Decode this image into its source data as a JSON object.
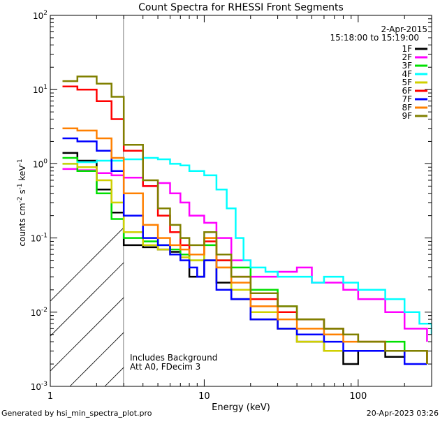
{
  "chart_data": {
    "type": "line",
    "title": "Count Spectra for RHESSI Front Segments",
    "xlabel": "Energy (keV)",
    "ylabel": "counts cm-2 s-1 keV-1",
    "xscale": "log",
    "yscale": "log",
    "xlim": [
      1,
      300
    ],
    "ylim": [
      0.001,
      100
    ],
    "x_ticks": [
      {
        "v": 1,
        "label": "1"
      },
      {
        "v": 10,
        "label": "10"
      },
      {
        "v": 100,
        "label": "100"
      }
    ],
    "y_ticks": [
      {
        "v": 0.001,
        "base": "10",
        "exp": "-3"
      },
      {
        "v": 0.01,
        "base": "10",
        "exp": "-2"
      },
      {
        "v": 0.1,
        "base": "10",
        "exp": "-1"
      },
      {
        "v": 1,
        "base": "10",
        "exp": "0"
      },
      {
        "v": 10,
        "base": "10",
        "exp": "1"
      },
      {
        "v": 100,
        "base": "10",
        "exp": "2"
      }
    ],
    "shaded_region_xmax": 3,
    "legend_date": "2-Apr-2015",
    "legend_time": "15:18:00 to 15:19:00",
    "legend_position": "top-right",
    "annotation_lines": [
      "Includes Background",
      "Att A0, FDecim 3"
    ],
    "footer_left": "Generated by hsi_min_spectra_plot.pro",
    "footer_right": "20-Apr-2023 03:26",
    "series": [
      {
        "name": "1F",
        "color": "#000000",
        "x": [
          1.2,
          1.5,
          2.0,
          2.5,
          3.0,
          4.0,
          5.0,
          6.0,
          7.0,
          8.0,
          10.0,
          12.0,
          15.0,
          20.0,
          30.0,
          40.0,
          60.0,
          80.0,
          100.0,
          150.0,
          200.0,
          280.0
        ],
        "y": [
          1.4,
          1.1,
          0.45,
          0.22,
          0.08,
          0.075,
          0.07,
          0.065,
          0.06,
          0.03,
          0.05,
          0.025,
          0.015,
          0.008,
          0.006,
          0.004,
          0.003,
          0.002,
          0.003,
          0.0025,
          0.003,
          0.002
        ]
      },
      {
        "name": "2F",
        "color": "#ff00ff",
        "x": [
          1.2,
          1.5,
          2.0,
          2.5,
          3.0,
          4.0,
          5.0,
          6.0,
          7.0,
          8.0,
          10.0,
          12.0,
          15.0,
          20.0,
          25.0,
          30.0,
          40.0,
          50.0,
          60.0,
          80.0,
          100.0,
          150.0,
          200.0,
          280.0
        ],
        "y": [
          0.85,
          0.82,
          0.75,
          0.7,
          0.65,
          0.5,
          0.55,
          0.4,
          0.3,
          0.2,
          0.16,
          0.1,
          0.05,
          0.03,
          0.03,
          0.035,
          0.04,
          0.025,
          0.025,
          0.02,
          0.015,
          0.01,
          0.006,
          0.004
        ]
      },
      {
        "name": "3F",
        "color": "#00e000",
        "x": [
          1.2,
          1.5,
          2.0,
          2.5,
          3.0,
          4.0,
          5.0,
          6.0,
          7.0,
          8.0,
          10.0,
          12.0,
          15.0,
          20.0,
          30.0,
          40.0,
          60.0,
          80.0,
          100.0,
          150.0,
          200.0,
          280.0
        ],
        "y": [
          1.2,
          0.8,
          0.4,
          0.18,
          0.1,
          0.09,
          0.08,
          0.07,
          0.06,
          0.05,
          0.08,
          0.05,
          0.04,
          0.02,
          0.012,
          0.008,
          0.006,
          0.005,
          0.004,
          0.004,
          0.003,
          0.003
        ]
      },
      {
        "name": "4F",
        "color": "#00ffff",
        "x": [
          1.2,
          1.5,
          2.0,
          2.5,
          3.0,
          4.0,
          5.0,
          6.0,
          7.0,
          8.0,
          10.0,
          12.0,
          14.0,
          16.0,
          18.0,
          20.0,
          25.0,
          30.0,
          40.0,
          50.0,
          60.0,
          80.0,
          100.0,
          150.0,
          200.0,
          250.0,
          300.0
        ],
        "y": [
          1.0,
          1.05,
          1.1,
          1.1,
          1.15,
          1.2,
          1.15,
          1.0,
          0.95,
          0.8,
          0.7,
          0.45,
          0.25,
          0.1,
          0.05,
          0.04,
          0.035,
          0.03,
          0.03,
          0.025,
          0.03,
          0.025,
          0.02,
          0.015,
          0.01,
          0.007,
          0.005
        ]
      },
      {
        "name": "5F",
        "color": "#d0d000",
        "x": [
          1.2,
          1.5,
          2.0,
          2.5,
          3.0,
          4.0,
          5.0,
          6.0,
          7.0,
          8.0,
          10.0,
          12.0,
          15.0,
          20.0,
          30.0,
          40.0,
          60.0,
          80.0,
          100.0,
          150.0,
          200.0,
          280.0
        ],
        "y": [
          1.0,
          0.9,
          0.6,
          0.3,
          0.12,
          0.08,
          0.07,
          0.06,
          0.055,
          0.05,
          0.1,
          0.04,
          0.02,
          0.01,
          0.006,
          0.004,
          0.003,
          0.003,
          0.003,
          0.003,
          0.003,
          0.002
        ]
      },
      {
        "name": "6F",
        "color": "#ff0000",
        "x": [
          1.2,
          1.5,
          2.0,
          2.5,
          3.0,
          4.0,
          5.0,
          6.0,
          7.0,
          8.0,
          10.0,
          12.0,
          15.0,
          20.0,
          30.0,
          40.0,
          60.0,
          80.0,
          100.0,
          150.0,
          200.0,
          280.0
        ],
        "y": [
          11.0,
          10.0,
          7.0,
          4.0,
          1.5,
          0.5,
          0.2,
          0.12,
          0.08,
          0.06,
          0.09,
          0.05,
          0.03,
          0.015,
          0.01,
          0.008,
          0.006,
          0.005,
          0.004,
          0.003,
          0.003,
          0.002
        ]
      },
      {
        "name": "7F",
        "color": "#0000ff",
        "x": [
          1.2,
          1.5,
          2.0,
          2.5,
          3.0,
          4.0,
          5.0,
          6.0,
          7.0,
          8.0,
          9.0,
          10.0,
          12.0,
          15.0,
          20.0,
          30.0,
          40.0,
          60.0,
          80.0,
          100.0,
          150.0,
          200.0,
          280.0
        ],
        "y": [
          2.2,
          2.0,
          1.5,
          0.8,
          0.2,
          0.1,
          0.08,
          0.06,
          0.05,
          0.04,
          0.03,
          0.05,
          0.02,
          0.015,
          0.008,
          0.006,
          0.005,
          0.004,
          0.003,
          0.003,
          0.003,
          0.002,
          0.002
        ]
      },
      {
        "name": "8F",
        "color": "#ff8000",
        "x": [
          1.2,
          1.5,
          2.0,
          2.5,
          3.0,
          4.0,
          5.0,
          6.0,
          7.0,
          8.0,
          10.0,
          12.0,
          15.0,
          20.0,
          30.0,
          40.0,
          60.0,
          80.0,
          100.0,
          150.0,
          200.0,
          280.0
        ],
        "y": [
          3.0,
          2.8,
          2.2,
          1.2,
          0.4,
          0.15,
          0.1,
          0.08,
          0.07,
          0.06,
          0.1,
          0.04,
          0.025,
          0.012,
          0.008,
          0.006,
          0.005,
          0.004,
          0.004,
          0.003,
          0.003,
          0.002
        ]
      },
      {
        "name": "9F",
        "color": "#808000",
        "x": [
          1.2,
          1.5,
          2.0,
          2.5,
          3.0,
          4.0,
          5.0,
          6.0,
          7.0,
          8.0,
          10.0,
          12.0,
          15.0,
          20.0,
          30.0,
          40.0,
          60.0,
          80.0,
          100.0,
          150.0,
          200.0,
          280.0
        ],
        "y": [
          13.0,
          15.0,
          12.0,
          8.0,
          1.8,
          0.6,
          0.25,
          0.15,
          0.1,
          0.08,
          0.12,
          0.06,
          0.03,
          0.018,
          0.012,
          0.008,
          0.006,
          0.005,
          0.004,
          0.003,
          0.003,
          0.002
        ]
      }
    ]
  }
}
